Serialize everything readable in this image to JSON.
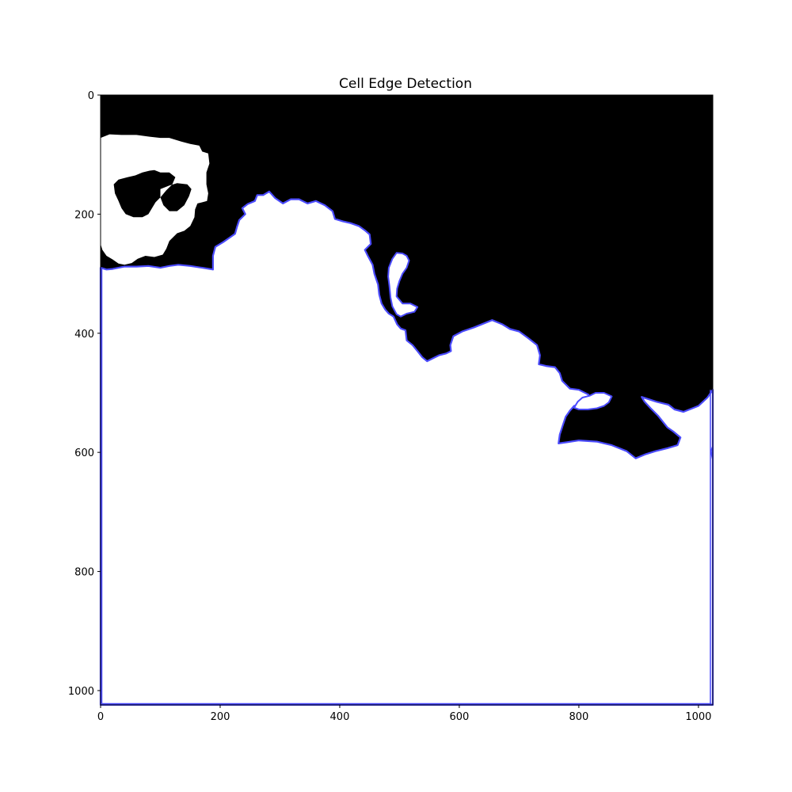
{
  "chart_data": {
    "type": "image",
    "title": "Cell Edge Detection",
    "xlabel": "",
    "ylabel": "",
    "xlim": [
      0,
      1024
    ],
    "ylim": [
      1024,
      0
    ],
    "x_ticks": [
      0,
      200,
      400,
      600,
      800,
      1000
    ],
    "y_ticks": [
      0,
      200,
      400,
      600,
      800,
      1000
    ],
    "edge_color": "#4b4bff",
    "foreground_color": "#ffffff",
    "background_color": "#000000",
    "regions": {
      "main_cell_boundary": [
        [
          0,
          290
        ],
        [
          10,
          293
        ],
        [
          20,
          292
        ],
        [
          40,
          288
        ],
        [
          60,
          288
        ],
        [
          80,
          287
        ],
        [
          100,
          290
        ],
        [
          115,
          287
        ],
        [
          130,
          285
        ],
        [
          150,
          287
        ],
        [
          170,
          290
        ],
        [
          188,
          293
        ],
        [
          188,
          270
        ],
        [
          192,
          255
        ],
        [
          205,
          247
        ],
        [
          215,
          240
        ],
        [
          225,
          233
        ],
        [
          228,
          222
        ],
        [
          232,
          210
        ],
        [
          242,
          200
        ],
        [
          237,
          190
        ],
        [
          246,
          183
        ],
        [
          258,
          178
        ],
        [
          262,
          168
        ],
        [
          272,
          168
        ],
        [
          282,
          162
        ],
        [
          292,
          173
        ],
        [
          305,
          182
        ],
        [
          318,
          175
        ],
        [
          332,
          175
        ],
        [
          346,
          182
        ],
        [
          360,
          178
        ],
        [
          375,
          185
        ],
        [
          388,
          195
        ],
        [
          392,
          208
        ],
        [
          405,
          212
        ],
        [
          418,
          215
        ],
        [
          432,
          220
        ],
        [
          443,
          228
        ],
        [
          450,
          234
        ],
        [
          452,
          250
        ],
        [
          442,
          260
        ],
        [
          447,
          270
        ],
        [
          455,
          285
        ],
        [
          458,
          300
        ],
        [
          464,
          318
        ],
        [
          466,
          335
        ],
        [
          470,
          350
        ],
        [
          476,
          360
        ],
        [
          482,
          367
        ],
        [
          490,
          372
        ],
        [
          496,
          385
        ],
        [
          502,
          392
        ],
        [
          510,
          395
        ],
        [
          512,
          412
        ],
        [
          522,
          420
        ],
        [
          530,
          430
        ],
        [
          538,
          440
        ],
        [
          546,
          447
        ],
        [
          556,
          442
        ],
        [
          566,
          437
        ],
        [
          578,
          434
        ],
        [
          586,
          430
        ],
        [
          585,
          420
        ],
        [
          590,
          405
        ],
        [
          605,
          397
        ],
        [
          625,
          390
        ],
        [
          655,
          378
        ],
        [
          672,
          385
        ],
        [
          685,
          393
        ],
        [
          700,
          397
        ],
        [
          715,
          408
        ],
        [
          730,
          420
        ],
        [
          735,
          437
        ],
        [
          733,
          452
        ],
        [
          745,
          455
        ],
        [
          760,
          457
        ],
        [
          768,
          467
        ],
        [
          772,
          480
        ],
        [
          785,
          493
        ],
        [
          800,
          495
        ],
        [
          816,
          503
        ],
        [
          816,
          516
        ],
        [
          802,
          520
        ],
        [
          792,
          522
        ],
        [
          785,
          530
        ],
        [
          778,
          540
        ],
        [
          773,
          555
        ],
        [
          768,
          570
        ],
        [
          766,
          585
        ],
        [
          780,
          583
        ],
        [
          800,
          580
        ],
        [
          830,
          582
        ],
        [
          855,
          588
        ],
        [
          880,
          598
        ],
        [
          895,
          610
        ],
        [
          912,
          603
        ],
        [
          928,
          598
        ],
        [
          948,
          593
        ],
        [
          965,
          588
        ],
        [
          970,
          575
        ],
        [
          958,
          565
        ],
        [
          948,
          558
        ],
        [
          940,
          548
        ],
        [
          932,
          538
        ],
        [
          920,
          526
        ],
        [
          910,
          515
        ],
        [
          905,
          507
        ],
        [
          930,
          515
        ],
        [
          950,
          520
        ],
        [
          960,
          528
        ],
        [
          975,
          532
        ],
        [
          985,
          528
        ],
        [
          1000,
          522
        ],
        [
          1015,
          508
        ],
        [
          1024,
          495
        ],
        [
          1024,
          1024
        ],
        [
          0,
          1024
        ]
      ],
      "top_left_blob": [
        [
          0,
          72
        ],
        [
          15,
          66
        ],
        [
          35,
          67
        ],
        [
          60,
          67
        ],
        [
          82,
          70
        ],
        [
          100,
          72
        ],
        [
          115,
          72
        ],
        [
          135,
          78
        ],
        [
          150,
          82
        ],
        [
          165,
          85
        ],
        [
          170,
          95
        ],
        [
          180,
          98
        ],
        [
          182,
          115
        ],
        [
          177,
          130
        ],
        [
          177,
          150
        ],
        [
          180,
          165
        ],
        [
          178,
          178
        ],
        [
          162,
          182
        ],
        [
          158,
          192
        ],
        [
          157,
          205
        ],
        [
          150,
          220
        ],
        [
          140,
          228
        ],
        [
          128,
          232
        ],
        [
          115,
          245
        ],
        [
          110,
          258
        ],
        [
          104,
          268
        ],
        [
          90,
          272
        ],
        [
          75,
          270
        ],
        [
          62,
          275
        ],
        [
          52,
          282
        ],
        [
          40,
          285
        ],
        [
          30,
          283
        ],
        [
          20,
          276
        ],
        [
          10,
          270
        ],
        [
          3,
          260
        ],
        [
          0,
          250
        ]
      ],
      "top_left_holes": [
        [
          [
            22,
            150
          ],
          [
            30,
            142
          ],
          [
            45,
            138
          ],
          [
            58,
            135
          ],
          [
            70,
            130
          ],
          [
            82,
            127
          ],
          [
            90,
            126
          ],
          [
            100,
            130
          ],
          [
            115,
            130
          ],
          [
            125,
            138
          ],
          [
            120,
            150
          ],
          [
            110,
            160
          ],
          [
            100,
            172
          ],
          [
            92,
            180
          ],
          [
            86,
            190
          ],
          [
            80,
            200
          ],
          [
            70,
            205
          ],
          [
            55,
            205
          ],
          [
            42,
            200
          ],
          [
            35,
            190
          ],
          [
            30,
            178
          ],
          [
            24,
            165
          ]
        ],
        [
          [
            100,
            158
          ],
          [
            115,
            152
          ],
          [
            128,
            148
          ],
          [
            145,
            150
          ],
          [
            152,
            158
          ],
          [
            148,
            170
          ],
          [
            140,
            185
          ],
          [
            128,
            195
          ],
          [
            115,
            195
          ],
          [
            105,
            185
          ],
          [
            100,
            172
          ]
        ]
      ],
      "inner_hole_mid": [
        [
          482,
          290
        ],
        [
          488,
          275
        ],
        [
          495,
          265
        ],
        [
          505,
          266
        ],
        [
          512,
          270
        ],
        [
          516,
          278
        ],
        [
          512,
          290
        ],
        [
          505,
          300
        ],
        [
          500,
          312
        ],
        [
          496,
          325
        ],
        [
          495,
          338
        ],
        [
          505,
          350
        ],
        [
          518,
          350
        ],
        [
          530,
          356
        ],
        [
          525,
          364
        ],
        [
          512,
          367
        ],
        [
          502,
          372
        ],
        [
          495,
          368
        ],
        [
          488,
          355
        ],
        [
          485,
          340
        ],
        [
          483,
          320
        ],
        [
          481,
          305
        ]
      ],
      "right_lobe": [
        [
          792,
          525
        ],
        [
          798,
          515
        ],
        [
          806,
          508
        ],
        [
          818,
          505
        ],
        [
          828,
          500
        ],
        [
          842,
          500
        ],
        [
          855,
          506
        ],
        [
          850,
          516
        ],
        [
          842,
          522
        ],
        [
          830,
          526
        ],
        [
          815,
          528
        ],
        [
          800,
          528
        ]
      ],
      "right_edge_stub": [
        [
          1024,
          590
        ],
        [
          1021,
          598
        ],
        [
          1024,
          612
        ]
      ]
    }
  }
}
